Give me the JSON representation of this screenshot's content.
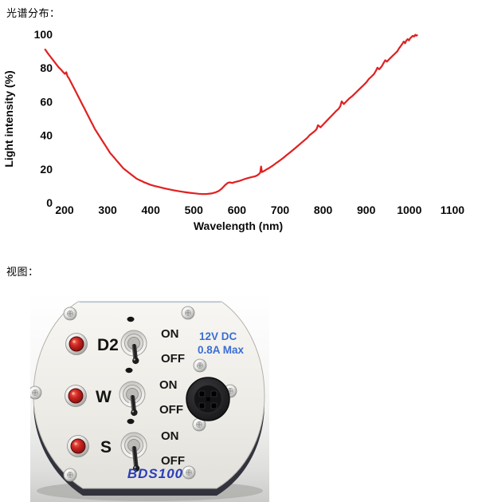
{
  "labels": {
    "spectral": "光谱分布：",
    "view": "视图："
  },
  "chart_data": {
    "type": "line",
    "xlabel": "Wavelength (nm)",
    "ylabel": "Light intensity (%)",
    "xlim": [
      150,
      1150
    ],
    "ylim": [
      0,
      100
    ],
    "x_ticks": [
      200,
      300,
      400,
      500,
      600,
      700,
      800,
      900,
      1000,
      1100
    ],
    "y_ticks": [
      0,
      20,
      40,
      60,
      80,
      100
    ],
    "grid": false,
    "legend": false,
    "line_color": "#e02020",
    "x": [
      155,
      162,
      168,
      174,
      180,
      186,
      192,
      197,
      201,
      204,
      207,
      210,
      213,
      217,
      221,
      226,
      231,
      236,
      241,
      246,
      251,
      256,
      261,
      266,
      271,
      276,
      281,
      286,
      291,
      296,
      301,
      306,
      311,
      316,
      321,
      326,
      331,
      336,
      341,
      346,
      351,
      356,
      361,
      366,
      371,
      376,
      381,
      386,
      391,
      396,
      401,
      411,
      421,
      431,
      441,
      451,
      461,
      471,
      481,
      491,
      501,
      511,
      521,
      531,
      541,
      551,
      558,
      564,
      569,
      574,
      579,
      584,
      589,
      594,
      599,
      604,
      609,
      617,
      625,
      633,
      641,
      647,
      651,
      654,
      656,
      658,
      663,
      669,
      676,
      683,
      691,
      699,
      707,
      715,
      723,
      731,
      739,
      747,
      755,
      763,
      769,
      775,
      781,
      785,
      788,
      794,
      800,
      806,
      812,
      818,
      824,
      830,
      836,
      840,
      843,
      848,
      854,
      860,
      868,
      876,
      884,
      892,
      900,
      906,
      912,
      918,
      922,
      926,
      930,
      936,
      940,
      944,
      948,
      954,
      960,
      966,
      972,
      976,
      980,
      984,
      987,
      990,
      993,
      996,
      999,
      1002,
      1005,
      1008,
      1011,
      1014,
      1016,
      1018
    ],
    "y": [
      91,
      88.5,
      86.5,
      84.5,
      82.5,
      80.5,
      79,
      77.5,
      76.5,
      77.5,
      75,
      74,
      72.5,
      70.5,
      68.5,
      66,
      63.5,
      61,
      58.5,
      56,
      53.5,
      51,
      48.5,
      46,
      43.5,
      41.5,
      39.5,
      37.5,
      35.5,
      33.5,
      31.5,
      29.5,
      28,
      26.5,
      25,
      23.5,
      22,
      20.5,
      19.5,
      18.5,
      17.5,
      16.5,
      15.5,
      14.5,
      13.8,
      13.2,
      12.6,
      12,
      11.5,
      11,
      10.5,
      9.8,
      9.2,
      8.6,
      8,
      7.5,
      7,
      6.6,
      6.2,
      5.9,
      5.6,
      5.3,
      5.1,
      5.2,
      5.5,
      6.2,
      7,
      8.2,
      9.5,
      10.8,
      11.8,
      12.1,
      11.7,
      12.2,
      12.5,
      12.8,
      13.2,
      14,
      14.6,
      15.1,
      15.6,
      16.2,
      17,
      17.8,
      21.5,
      18.2,
      18.8,
      19.8,
      20.8,
      22,
      23.5,
      25,
      26.5,
      28.2,
      29.8,
      31.5,
      33.2,
      35,
      36.8,
      38.5,
      40.2,
      41.4,
      42.6,
      43.8,
      46,
      44.8,
      46.4,
      48,
      49.6,
      51.2,
      52.8,
      54.4,
      55.8,
      57.4,
      60.2,
      58.6,
      60.2,
      61.8,
      63.4,
      65.4,
      67.4,
      69.4,
      71.4,
      73.4,
      74.9,
      76.4,
      78.1,
      80.2,
      79.2,
      81,
      82.8,
      84.6,
      83.8,
      85.4,
      86.9,
      88.4,
      89.9,
      91.6,
      93,
      94.4,
      95.7,
      94.7,
      96.2,
      97.1,
      96.4,
      97.7,
      98.4,
      99.1,
      98.7,
      99.7,
      99.2,
      99.5
    ]
  },
  "device": {
    "model": "BDS100",
    "power_rating": {
      "line1": "12V DC",
      "line2": "0.8A Max"
    },
    "channels": [
      {
        "label": "D2",
        "on": "ON",
        "off": "OFF",
        "switch_state": "off",
        "led_lit": false
      },
      {
        "label": "W",
        "on": "ON",
        "off": "OFF",
        "switch_state": "off",
        "led_lit": false
      },
      {
        "label": "S",
        "on": "ON",
        "off": "OFF",
        "switch_state": "off",
        "led_lit": false
      }
    ]
  },
  "colors": {
    "curve": "#e02020",
    "power_text": "#3a6ed4",
    "logo_text": "#2a3eb8",
    "led_dark_red": "#8c1212"
  }
}
